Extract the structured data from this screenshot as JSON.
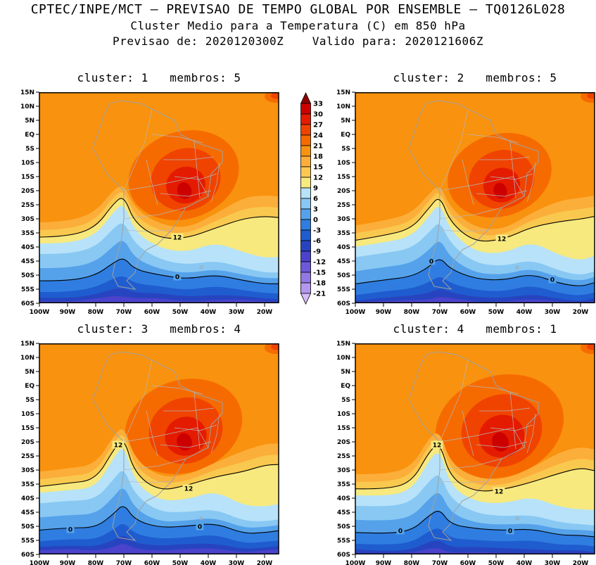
{
  "header": {
    "line1": "CPTEC/INPE/MCT — PREVISAO DE TEMPO GLOBAL POR ENSEMBLE — TQ0126L028",
    "line2": "Cluster Medio para a Temperatura (C) em 850 hPa",
    "line3": "Previsao de: 2020120300Z    Valido para: 2020121606Z"
  },
  "chart_data": {
    "type": "heatmap",
    "subtype": "filled-contour-map",
    "title": "Cluster Medio para a Temperatura (C) em 850 hPa",
    "model": "TQ0126L028",
    "init_time": "2020120300Z",
    "valid_time": "2020121606Z",
    "unit": "C",
    "lon_range": [
      -100,
      -15
    ],
    "lat_range": [
      15,
      -60
    ],
    "lat_tick_labels": [
      "15N",
      "10N",
      "5N",
      "EQ",
      "5S",
      "10S",
      "15S",
      "20S",
      "25S",
      "30S",
      "35S",
      "40S",
      "45S",
      "50S",
      "55S",
      "60S"
    ],
    "lon_tick_labels": [
      "100W",
      "90W",
      "80W",
      "70W",
      "60W",
      "50W",
      "40W",
      "30W",
      "20W"
    ],
    "colorbar": {
      "levels": [
        33,
        30,
        27,
        24,
        21,
        18,
        15,
        12,
        9,
        6,
        3,
        0,
        -3,
        -6,
        -9,
        -12,
        -15,
        -18,
        -21
      ],
      "colors": [
        "#8d0000",
        "#cd0000",
        "#e41b00",
        "#f04300",
        "#f66b00",
        "#f9920e",
        "#fcae3a",
        "#f9c84f",
        "#f7e97e",
        "#b7e2f9",
        "#88c8f3",
        "#55a2ea",
        "#2f7de0",
        "#1f5ccf",
        "#2744c0",
        "#4b43cc",
        "#6e58da",
        "#9178e5",
        "#b497ef",
        "#d6bcf8"
      ]
    },
    "panels": [
      {
        "cluster": 1,
        "membros": 5,
        "title": "cluster: 1   membros: 5",
        "contour_labels": [
          {
            "value": "12",
            "lon": -51,
            "lat": -36.5
          },
          {
            "value": "0",
            "lon": -51,
            "lat": -50.5
          }
        ]
      },
      {
        "cluster": 2,
        "membros": 5,
        "title": "cluster: 2   membros: 5",
        "contour_labels": [
          {
            "value": "12",
            "lon": -48,
            "lat": -37
          },
          {
            "value": "0",
            "lon": -73,
            "lat": -45
          },
          {
            "value": "0",
            "lon": -30,
            "lat": -51.5
          }
        ]
      },
      {
        "cluster": 3,
        "membros": 4,
        "title": "cluster: 3   membros: 4",
        "contour_labels": [
          {
            "value": "12",
            "lon": -72,
            "lat": -21
          },
          {
            "value": "12",
            "lon": -47,
            "lat": -36.5
          },
          {
            "value": "0",
            "lon": -89,
            "lat": -51
          },
          {
            "value": "0",
            "lon": -43,
            "lat": -50
          }
        ]
      },
      {
        "cluster": 4,
        "membros": 1,
        "title": "cluster: 4   membros: 1",
        "contour_labels": [
          {
            "value": "12",
            "lon": -71,
            "lat": -21
          },
          {
            "value": "12",
            "lon": -49,
            "lat": -37.5
          },
          {
            "value": "0",
            "lon": -84,
            "lat": -51.5
          },
          {
            "value": "0",
            "lon": -45,
            "lat": -51.5
          }
        ]
      }
    ]
  }
}
